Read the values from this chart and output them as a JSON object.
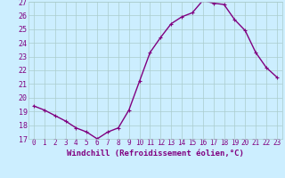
{
  "x": [
    0,
    1,
    2,
    3,
    4,
    5,
    6,
    7,
    8,
    9,
    10,
    11,
    12,
    13,
    14,
    15,
    16,
    17,
    18,
    19,
    20,
    21,
    22,
    23
  ],
  "y": [
    19.4,
    19.1,
    18.7,
    18.3,
    17.8,
    17.5,
    17.0,
    17.5,
    17.8,
    19.1,
    21.2,
    23.3,
    24.4,
    25.4,
    25.9,
    26.2,
    27.1,
    26.9,
    26.8,
    25.7,
    24.9,
    23.3,
    22.2,
    21.5
  ],
  "line_color": "#800080",
  "marker": "+",
  "marker_size": 3,
  "line_width": 1.0,
  "xlabel": "Windchill (Refroidissement éolien,°C)",
  "xlim": [
    -0.5,
    23.5
  ],
  "ylim": [
    17,
    27
  ],
  "yticks": [
    17,
    18,
    19,
    20,
    21,
    22,
    23,
    24,
    25,
    26,
    27
  ],
  "xticks": [
    0,
    1,
    2,
    3,
    4,
    5,
    6,
    7,
    8,
    9,
    10,
    11,
    12,
    13,
    14,
    15,
    16,
    17,
    18,
    19,
    20,
    21,
    22,
    23
  ],
  "bg_color": "#cceeff",
  "grid_color": "#aacccc",
  "line_purple": "#800080",
  "xlabel_fontsize": 6.5,
  "ytick_fontsize": 6,
  "xtick_fontsize": 5.5
}
